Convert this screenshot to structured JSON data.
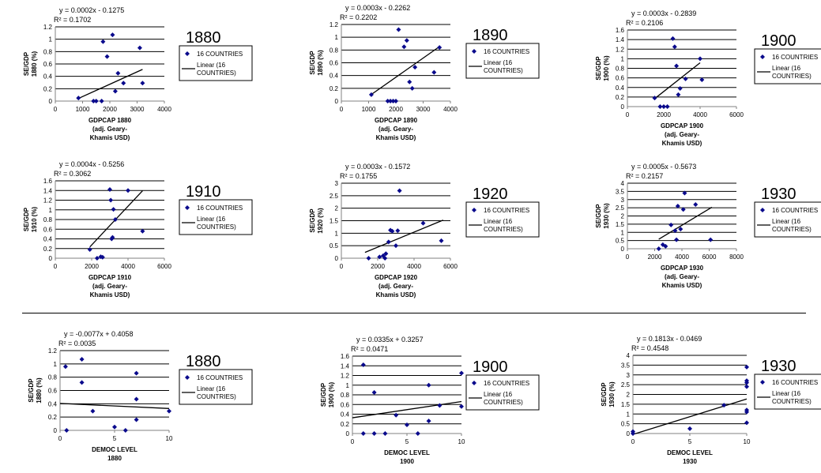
{
  "legend": {
    "series_label": "16 COUNTRIES",
    "trend_line1": "Linear (16",
    "trend_line2": "COUNTRIES)"
  },
  "colors": {
    "points": "#0a0a8c",
    "trend": "#000000",
    "grid": "#000000",
    "axis": "#808080"
  },
  "chart_data": [
    {
      "type": "scatter",
      "title": "1880",
      "equation": "y = 0.0002x - 0.1275",
      "r2": "R² = 0.1702",
      "ylabel": [
        "SE/GDP",
        "1880 (%)"
      ],
      "xlabel": [
        "GDPCAP 1880",
        "(adj. Geary-",
        "Khamis USD)"
      ],
      "xlim": [
        0,
        4000
      ],
      "ylim": [
        0,
        1.2
      ],
      "xticks": [
        "0",
        "1000",
        "2000",
        "3000",
        "4000"
      ],
      "yticks": [
        "0",
        "0.2",
        "0.4",
        "0.6",
        "0.8",
        "1",
        "1.2"
      ],
      "trend": {
        "slope": 0.0002,
        "intercept": -0.1275,
        "x0": 800,
        "x1": 3200
      },
      "points": [
        [
          850,
          0.05
        ],
        [
          1400,
          0
        ],
        [
          1500,
          0
        ],
        [
          1700,
          0
        ],
        [
          1750,
          0.96
        ],
        [
          1900,
          0.72
        ],
        [
          2100,
          1.07
        ],
        [
          2200,
          0.16
        ],
        [
          2300,
          0.45
        ],
        [
          2500,
          0.29
        ],
        [
          3100,
          0.86
        ],
        [
          3200,
          0.29
        ]
      ]
    },
    {
      "type": "scatter",
      "title": "1890",
      "equation": "y = 0.0003x - 0.2262",
      "r2": "R² = 0.2202",
      "ylabel": [
        "SE/GDP",
        "1890 (%)"
      ],
      "xlabel": [
        "GDPCAP 1890",
        "(adj. Geary-",
        "Khamis USD)"
      ],
      "xlim": [
        0,
        4000
      ],
      "ylim": [
        0,
        1.2
      ],
      "xticks": [
        "0",
        "1000",
        "2000",
        "3000",
        "4000"
      ],
      "yticks": [
        "0",
        "0.2",
        "0.4",
        "0.6",
        "0.8",
        "1",
        "1.2"
      ],
      "trend": {
        "slope": 0.0003,
        "intercept": -0.2262,
        "x0": 1100,
        "x1": 3600
      },
      "points": [
        [
          1100,
          0.1
        ],
        [
          1700,
          0
        ],
        [
          1800,
          0
        ],
        [
          1900,
          0
        ],
        [
          2000,
          0
        ],
        [
          2100,
          1.12
        ],
        [
          2300,
          0.85
        ],
        [
          2400,
          0.95
        ],
        [
          2500,
          0.3
        ],
        [
          2600,
          0.2
        ],
        [
          2700,
          0.53
        ],
        [
          3400,
          0.45
        ],
        [
          3600,
          0.84
        ]
      ]
    },
    {
      "type": "scatter",
      "title": "1900",
      "equation": "y = 0.0003x - 0.2839",
      "r2": "R² = 0.2106",
      "ylabel": [
        "SE/GDP",
        "1900 (%)"
      ],
      "xlabel": [
        "GDPCAP 1900",
        "(adj. Geary-",
        "Khamis USD)"
      ],
      "xlim": [
        0,
        6000
      ],
      "ylim": [
        0,
        1.6
      ],
      "xticks": [
        "0",
        "2000",
        "4000",
        "6000"
      ],
      "yticks": [
        "0",
        "0.2",
        "0.4",
        "0.6",
        "0.8",
        "1",
        "1.2",
        "1.4",
        "1.6"
      ],
      "trend": {
        "slope": 0.0003,
        "intercept": -0.2839,
        "x0": 1500,
        "x1": 4000
      },
      "points": [
        [
          1500,
          0.18
        ],
        [
          1800,
          0
        ],
        [
          2000,
          0
        ],
        [
          2200,
          0
        ],
        [
          2500,
          1.42
        ],
        [
          2600,
          1.25
        ],
        [
          2700,
          0.85
        ],
        [
          2800,
          0.25
        ],
        [
          2900,
          0.38
        ],
        [
          3200,
          0.58
        ],
        [
          4000,
          1.0
        ],
        [
          4100,
          0.56
        ]
      ]
    },
    {
      "type": "scatter",
      "title": "1910",
      "equation": "y = 0.0004x - 0.5256",
      "r2": "R² = 0.3062",
      "ylabel": [
        "SE/GDP",
        "1910 (%)"
      ],
      "xlabel": [
        "GDPCAP 1910",
        "(adj. Geary-",
        "Khamis USD)"
      ],
      "xlim": [
        0,
        6000
      ],
      "ylim": [
        0,
        1.6
      ],
      "xticks": [
        "0",
        "2000",
        "4000",
        "6000"
      ],
      "yticks": [
        "0",
        "0.2",
        "0.4",
        "0.6",
        "0.8",
        "1",
        "1.2",
        "1.4",
        "1.6"
      ],
      "trend": {
        "slope": 0.0004,
        "intercept": -0.5256,
        "x0": 1900,
        "x1": 4800
      },
      "points": [
        [
          1900,
          0.18
        ],
        [
          2300,
          0
        ],
        [
          2500,
          0.03
        ],
        [
          2600,
          0.02
        ],
        [
          3000,
          1.42
        ],
        [
          3050,
          1.2
        ],
        [
          3100,
          0.4
        ],
        [
          3150,
          0.43
        ],
        [
          3200,
          1.01
        ],
        [
          3300,
          0.8
        ],
        [
          4000,
          1.4
        ],
        [
          4800,
          0.56
        ]
      ]
    },
    {
      "type": "scatter",
      "title": "1920",
      "equation": "y = 0.0003x - 0.1572",
      "r2": "R² = 0.1755",
      "ylabel": [
        "SE/GDP",
        "1920 (%)"
      ],
      "xlabel": [
        "GDPCAP 1920",
        "(adj. Geary-",
        "Khamis USD)"
      ],
      "xlim": [
        0,
        6000
      ],
      "ylim": [
        0,
        3
      ],
      "xticks": [
        "0",
        "2000",
        "4000",
        "6000"
      ],
      "yticks": [
        "0",
        "0.5",
        "1",
        "1.5",
        "2",
        "2.5",
        "3"
      ],
      "trend": {
        "slope": 0.0003,
        "intercept": -0.1572,
        "x0": 1300,
        "x1": 5600
      },
      "points": [
        [
          1500,
          0
        ],
        [
          2100,
          0.05
        ],
        [
          2300,
          0.1
        ],
        [
          2400,
          0
        ],
        [
          2450,
          0.18
        ],
        [
          2600,
          0.65
        ],
        [
          2700,
          1.12
        ],
        [
          2800,
          1.08
        ],
        [
          3000,
          0.5
        ],
        [
          3100,
          1.1
        ],
        [
          3200,
          2.7
        ],
        [
          4500,
          1.4
        ],
        [
          5500,
          0.7
        ]
      ]
    },
    {
      "type": "scatter",
      "title": "1930",
      "equation": "y = 0.0005x - 0.5673",
      "r2": "R² = 0.2157",
      "ylabel": [
        "SE/GDP",
        "1930 (%)"
      ],
      "xlabel": [
        "GDPCAP 1930",
        "(adj. Geary-",
        "Khamis USD)"
      ],
      "xlim": [
        0,
        8000
      ],
      "ylim": [
        0,
        4
      ],
      "xticks": [
        "0",
        "2000",
        "4000",
        "6000",
        "8000"
      ],
      "yticks": [
        "0",
        "0.5",
        "1",
        "1.5",
        "2",
        "2.5",
        "3",
        "3.5",
        "4"
      ],
      "trend": {
        "slope": 0.0005,
        "intercept": -0.5673,
        "x0": 2300,
        "x1": 6200
      },
      "points": [
        [
          2300,
          0
        ],
        [
          2600,
          0.25
        ],
        [
          2800,
          0.15
        ],
        [
          3200,
          1.45
        ],
        [
          3500,
          1.1
        ],
        [
          3600,
          0.55
        ],
        [
          3700,
          2.6
        ],
        [
          3900,
          1.2
        ],
        [
          4100,
          2.4
        ],
        [
          4200,
          3.4
        ],
        [
          5000,
          2.7
        ],
        [
          6100,
          0.55
        ]
      ]
    },
    {
      "type": "scatter",
      "title": "1880",
      "equation": "y = -0.0077x + 0.4058",
      "r2": "R² = 0.0035",
      "ylabel": [
        "SE/GDP",
        "1880 (%)"
      ],
      "xlabel": [
        "DEMOC LEVEL",
        "1880"
      ],
      "xlim": [
        0,
        10
      ],
      "ylim": [
        0,
        1.2
      ],
      "xticks": [
        "0",
        "5",
        "10"
      ],
      "yticks": [
        "0",
        "0.2",
        "0.4",
        "0.6",
        "0.8",
        "1",
        "1.2"
      ],
      "trend": {
        "slope": -0.0077,
        "intercept": 0.4058,
        "x0": 0,
        "x1": 10
      },
      "points": [
        [
          0.5,
          0.96
        ],
        [
          0.6,
          0
        ],
        [
          2,
          1.07
        ],
        [
          2,
          0.72
        ],
        [
          3,
          0.29
        ],
        [
          5,
          0.05
        ],
        [
          6,
          0
        ],
        [
          7,
          0.86
        ],
        [
          7,
          0.47
        ],
        [
          7,
          0.16
        ],
        [
          10,
          0.29
        ]
      ]
    },
    {
      "type": "scatter",
      "title": "1900",
      "equation": "y = 0.0335x + 0.3257",
      "r2": "R² = 0.0471",
      "ylabel": [
        "SE/GDP",
        "1900 (%)"
      ],
      "xlabel": [
        "DEMOC LEVEL",
        "1900"
      ],
      "xlim": [
        0,
        10
      ],
      "ylim": [
        0,
        1.6
      ],
      "xticks": [
        "0",
        "5",
        "10"
      ],
      "yticks": [
        "0",
        "0.2",
        "0.4",
        "0.6",
        "0.8",
        "1",
        "1.2",
        "1.4",
        "1.6"
      ],
      "trend": {
        "slope": 0.0335,
        "intercept": 0.3257,
        "x0": 0,
        "x1": 10
      },
      "points": [
        [
          1,
          1.42
        ],
        [
          1,
          0
        ],
        [
          2,
          0.85
        ],
        [
          2,
          0
        ],
        [
          3,
          0
        ],
        [
          4,
          0.38
        ],
        [
          5,
          0.18
        ],
        [
          6,
          0
        ],
        [
          7,
          1.0
        ],
        [
          7,
          0.26
        ],
        [
          8,
          0.58
        ],
        [
          10,
          1.25
        ],
        [
          10,
          0.56
        ]
      ]
    },
    {
      "type": "scatter",
      "title": "1930",
      "equation": "y = 0.1813x - 0.0469",
      "r2": "R² = 0.4548",
      "ylabel": [
        "SE/GDP",
        "1930 (%)"
      ],
      "xlabel": [
        "DEMOC LEVEL",
        "1930"
      ],
      "xlim": [
        0,
        10
      ],
      "ylim": [
        0,
        4
      ],
      "xticks": [
        "0",
        "5",
        "10"
      ],
      "yticks": [
        "0",
        "0.5",
        "1",
        "1.5",
        "2",
        "2.5",
        "3",
        "3.5",
        "4"
      ],
      "trend": {
        "slope": 0.1813,
        "intercept": -0.0469,
        "x0": 0,
        "x1": 10
      },
      "points": [
        [
          0,
          0.1
        ],
        [
          0,
          0
        ],
        [
          5,
          0.25
        ],
        [
          8,
          1.45
        ],
        [
          10,
          3.4
        ],
        [
          10,
          2.7
        ],
        [
          10,
          2.6
        ],
        [
          10,
          2.4
        ],
        [
          10,
          1.2
        ],
        [
          10,
          1.1
        ],
        [
          10,
          0.55
        ]
      ]
    }
  ]
}
